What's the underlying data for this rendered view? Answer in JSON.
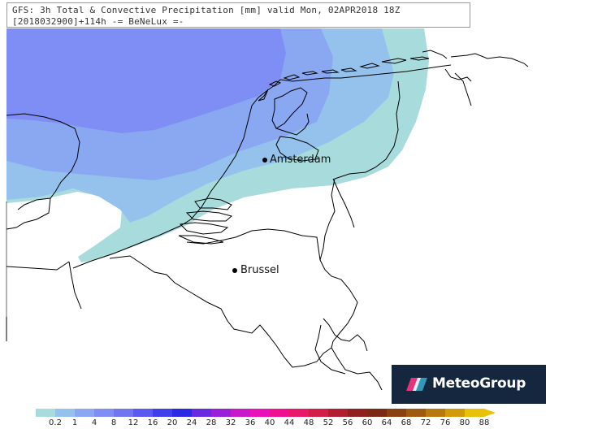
{
  "title": {
    "line1": "GFS: 3h Total & Convective Precipitation [mm] valid Mon, 02APR2018 18Z",
    "line2": "[2018032900]+114h -= BeNeLux =-"
  },
  "cities": [
    {
      "id": "amsterdam",
      "name": "Amsterdam"
    },
    {
      "id": "brussel",
      "name": "Brussel"
    }
  ],
  "logo": {
    "text": "MeteoGroup"
  },
  "legend": {
    "labels": [
      "0.2",
      "1",
      "4",
      "8",
      "12",
      "16",
      "20",
      "24",
      "28",
      "32",
      "36",
      "40",
      "44",
      "48",
      "52",
      "56",
      "60",
      "64",
      "68",
      "72",
      "76",
      "80",
      "88"
    ],
    "colors": [
      "#a8dcdc",
      "#95c2ec",
      "#8aa8f2",
      "#7f8ef4",
      "#6f76f0",
      "#5a5aee",
      "#4040ea",
      "#2a2ae4",
      "#6a28e0",
      "#9a20d8",
      "#c818cc",
      "#e810b8",
      "#ee1090",
      "#e8186a",
      "#d01e48",
      "#b01e30",
      "#902020",
      "#7a2a14",
      "#8a4010",
      "#a05a10",
      "#b8780e",
      "#d09a0a",
      "#e8c208"
    ]
  },
  "colors": {
    "precip_0_2": "#a8dcdc",
    "precip_1": "#95c2ec",
    "precip_4": "#8aa8f2",
    "precip_8": "#7f8ef4",
    "coastline": "#000000"
  }
}
